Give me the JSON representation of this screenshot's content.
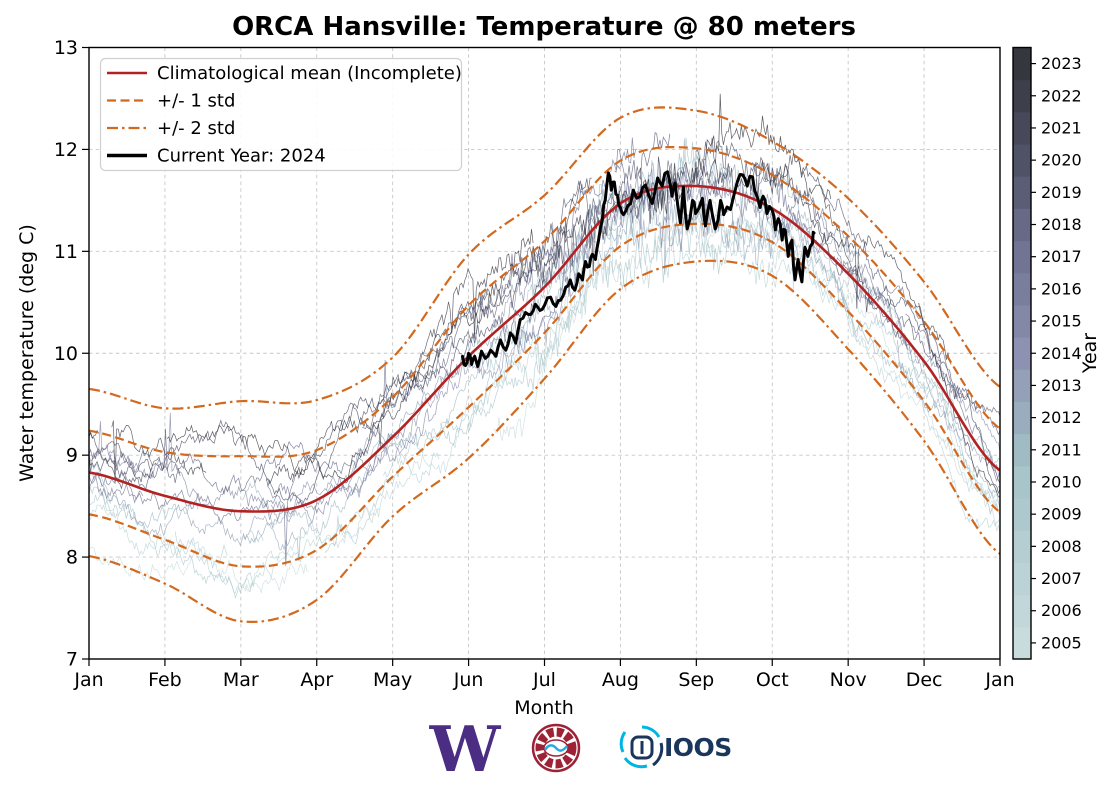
{
  "title": "ORCA Hansville: Temperature @ 80 meters",
  "axes": {
    "xlabel": "Month",
    "ylabel": "Water temperature (deg C)",
    "ylim": [
      7,
      13
    ],
    "yticks": [
      7,
      8,
      9,
      10,
      11,
      12,
      13
    ],
    "xticklabels": [
      "Jan",
      "Feb",
      "Mar",
      "Apr",
      "May",
      "Jun",
      "Jul",
      "Aug",
      "Sep",
      "Oct",
      "Nov",
      "Dec",
      "Jan"
    ],
    "grid": true
  },
  "legend": {
    "position": "upper left",
    "items": [
      {
        "label": "Climatological mean (Incomplete)",
        "style": "solid",
        "color": "#b22222",
        "width": 2.6
      },
      {
        "label": "+/- 1 std",
        "style": "dashed",
        "color": "#d2691e",
        "width": 2.2
      },
      {
        "label": "+/- 2 std",
        "style": "dashdot",
        "color": "#d2691e",
        "width": 2.2
      },
      {
        "label": "Current Year: 2024",
        "style": "solid",
        "color": "#000000",
        "width": 3.5
      }
    ]
  },
  "colorbar": {
    "label": "Year",
    "years": [
      2005,
      2006,
      2007,
      2008,
      2009,
      2010,
      2011,
      2012,
      2013,
      2014,
      2015,
      2016,
      2017,
      2018,
      2019,
      2020,
      2021,
      2022,
      2023
    ],
    "color_stops": [
      [
        0,
        "#c8dcdd"
      ],
      [
        0.3,
        "#a5c3c9"
      ],
      [
        0.5,
        "#8d92b2"
      ],
      [
        0.7,
        "#6b6e8c"
      ],
      [
        0.85,
        "#4d4e63"
      ],
      [
        1,
        "#36363e"
      ]
    ]
  },
  "chart_data": {
    "type": "line",
    "x_unit": "month_index_0_to_12",
    "categories": [
      "Jan",
      "Feb",
      "Mar",
      "Apr",
      "May",
      "Jun",
      "Jul",
      "Aug",
      "Sep",
      "Oct",
      "Nov",
      "Dec",
      "Jan"
    ],
    "ylim": [
      7,
      13
    ],
    "series": [
      {
        "name": "climatological_mean",
        "color": "#b22222",
        "values": [
          8.83,
          8.6,
          8.45,
          8.56,
          9.18,
          9.97,
          10.65,
          11.47,
          11.64,
          11.42,
          10.78,
          9.92,
          8.85
        ]
      },
      {
        "name": "std_monthly",
        "color": "#d2691e",
        "values": [
          0.41,
          0.43,
          0.54,
          0.49,
          0.39,
          0.5,
          0.45,
          0.42,
          0.37,
          0.33,
          0.37,
          0.39,
          0.41
        ]
      },
      {
        "name": "current_year_2024",
        "color": "#000000",
        "jitter": {
          "seed": 7,
          "amp": 0.035,
          "subdiv": 2
        },
        "points": [
          [
            4.92,
            9.97
          ],
          [
            4.96,
            9.88
          ],
          [
            5.0,
            10.0
          ],
          [
            5.04,
            9.89
          ],
          [
            5.08,
            9.97
          ],
          [
            5.12,
            9.87
          ],
          [
            5.17,
            10.02
          ],
          [
            5.22,
            9.95
          ],
          [
            5.29,
            10.03
          ],
          [
            5.36,
            9.97
          ],
          [
            5.42,
            10.13
          ],
          [
            5.49,
            10.03
          ],
          [
            5.55,
            10.2
          ],
          [
            5.62,
            10.1
          ],
          [
            5.68,
            10.33
          ],
          [
            5.75,
            10.4
          ],
          [
            5.82,
            10.38
          ],
          [
            5.88,
            10.48
          ],
          [
            5.94,
            10.42
          ],
          [
            6.0,
            10.47
          ],
          [
            6.08,
            10.55
          ],
          [
            6.15,
            10.46
          ],
          [
            6.21,
            10.52
          ],
          [
            6.28,
            10.65
          ],
          [
            6.34,
            10.72
          ],
          [
            6.4,
            10.62
          ],
          [
            6.45,
            10.78
          ],
          [
            6.5,
            10.72
          ],
          [
            6.54,
            10.9
          ],
          [
            6.59,
            10.85
          ],
          [
            6.63,
            10.97
          ],
          [
            6.67,
            10.92
          ],
          [
            6.71,
            11.1
          ],
          [
            6.76,
            11.3
          ],
          [
            6.8,
            11.5
          ],
          [
            6.84,
            11.77
          ],
          [
            6.88,
            11.6
          ],
          [
            6.92,
            11.68
          ],
          [
            6.96,
            11.55
          ],
          [
            7.0,
            11.43
          ],
          [
            7.04,
            11.36
          ],
          [
            7.1,
            11.45
          ],
          [
            7.17,
            11.6
          ],
          [
            7.26,
            11.54
          ],
          [
            7.33,
            11.65
          ],
          [
            7.42,
            11.47
          ],
          [
            7.49,
            11.72
          ],
          [
            7.55,
            11.64
          ],
          [
            7.62,
            11.78
          ],
          [
            7.68,
            11.54
          ],
          [
            7.72,
            11.67
          ],
          [
            7.79,
            11.28
          ],
          [
            7.83,
            11.63
          ],
          [
            7.88,
            11.22
          ],
          [
            7.95,
            11.5
          ],
          [
            7.99,
            11.37
          ],
          [
            8.08,
            11.52
          ],
          [
            8.12,
            11.25
          ],
          [
            8.18,
            11.5
          ],
          [
            8.25,
            11.22
          ],
          [
            8.32,
            11.5
          ],
          [
            8.36,
            11.36
          ],
          [
            8.45,
            11.41
          ],
          [
            8.54,
            11.68
          ],
          [
            8.61,
            11.75
          ],
          [
            8.67,
            11.64
          ],
          [
            8.74,
            11.73
          ],
          [
            8.8,
            11.54
          ],
          [
            8.84,
            11.43
          ],
          [
            8.88,
            11.54
          ],
          [
            8.93,
            11.37
          ],
          [
            9.0,
            11.4
          ],
          [
            9.04,
            11.21
          ],
          [
            9.08,
            11.32
          ],
          [
            9.13,
            11.11
          ],
          [
            9.17,
            11.21
          ],
          [
            9.21,
            10.95
          ],
          [
            9.26,
            11.11
          ],
          [
            9.3,
            10.72
          ],
          [
            9.34,
            10.92
          ],
          [
            9.39,
            10.7
          ],
          [
            9.43,
            11.04
          ],
          [
            9.47,
            10.95
          ],
          [
            9.53,
            11.08
          ],
          [
            9.55,
            11.18
          ]
        ]
      }
    ],
    "historical": {
      "years_start": 2005,
      "years_end": 2023,
      "seed": 1234,
      "points_per_line": 560,
      "offset_std_units_range": [
        -1.35,
        1.05
      ],
      "opacity": 0.8,
      "stroke_width": 0.7
    }
  },
  "footer": {
    "uw_text": "W",
    "ioos_text": "IOOS"
  }
}
